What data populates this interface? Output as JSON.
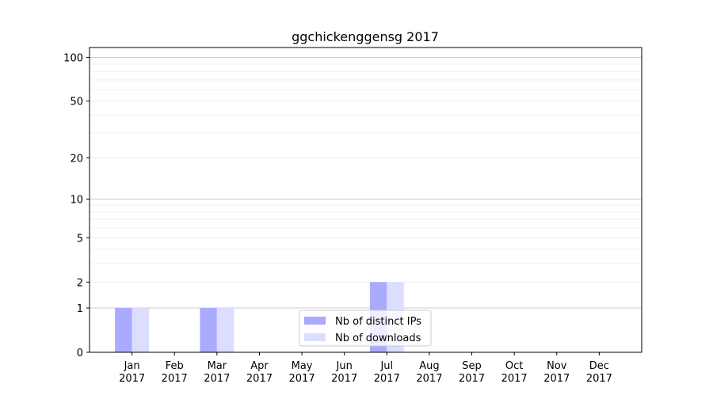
{
  "chart_data": {
    "type": "bar",
    "title": "ggchickenggensg 2017",
    "xlabel": "",
    "ylabel": "",
    "yscale": "log(1+y)",
    "ylim": [
      0,
      117
    ],
    "grid": true,
    "legend_placement": "lower center",
    "categories": [
      "Jan\n2017",
      "Feb\n2017",
      "Mar\n2017",
      "Apr\n2017",
      "May\n2017",
      "Jun\n2017",
      "Jul\n2017",
      "Aug\n2017",
      "Sep\n2017",
      "Oct\n2017",
      "Nov\n2017",
      "Dec\n2017"
    ],
    "yticks": [
      0,
      1,
      2,
      5,
      10,
      20,
      50,
      100
    ],
    "series": [
      {
        "name": "Nb of distinct IPs",
        "color": "#aaaaff",
        "values": [
          1,
          0,
          1,
          0,
          0,
          0,
          2,
          0,
          0,
          0,
          0,
          0
        ]
      },
      {
        "name": "Nb of downloads",
        "color": "#ddddff",
        "values": [
          1,
          0,
          1,
          0,
          0,
          0,
          2,
          0,
          0,
          0,
          0,
          0
        ]
      }
    ]
  }
}
